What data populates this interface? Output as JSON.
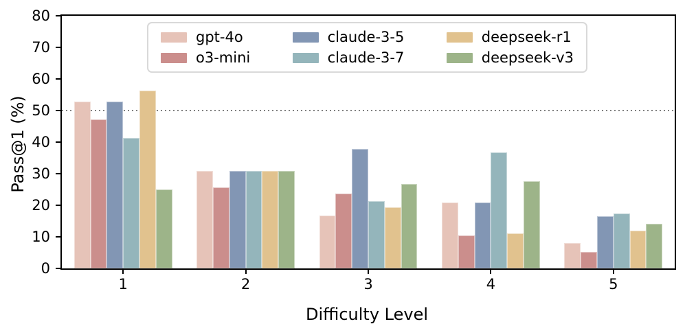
{
  "figure": {
    "background": "#ffffff"
  },
  "chart_data": {
    "type": "bar",
    "title": "",
    "xlabel": "Difficulty Level",
    "ylabel": "Pass@1 (%)",
    "categories": [
      "1",
      "2",
      "3",
      "4",
      "5"
    ],
    "series": [
      {
        "name": "gpt-4o",
        "color": "#e6c3b8",
        "values": [
          52.9,
          30.8,
          16.7,
          20.8,
          8.1
        ]
      },
      {
        "name": "o3-mini",
        "color": "#cb8e8c",
        "values": [
          47.2,
          25.7,
          23.7,
          10.4,
          5.2
        ]
      },
      {
        "name": "claude-3-5",
        "color": "#8296b4",
        "values": [
          52.9,
          30.8,
          37.9,
          20.8,
          16.5
        ]
      },
      {
        "name": "claude-3-7",
        "color": "#94b5bb",
        "values": [
          41.3,
          30.8,
          21.3,
          36.7,
          17.5
        ]
      },
      {
        "name": "deepseek-r1",
        "color": "#e1c28e",
        "values": [
          56.3,
          30.8,
          19.3,
          11.0,
          12.0
        ]
      },
      {
        "name": "deepseek-v3",
        "color": "#9db489",
        "values": [
          25.0,
          30.8,
          26.8,
          27.6,
          14.1
        ]
      }
    ],
    "ylim": [
      0,
      80
    ],
    "yticks": [
      0,
      10,
      20,
      30,
      40,
      50,
      60,
      70,
      80
    ],
    "reference_line": {
      "y": 50,
      "style": "dotted",
      "color": "#7f7f7f"
    },
    "legend": {
      "position": "upper center",
      "ncol": 3
    },
    "grid": false,
    "axis_color": "#000000",
    "group_width_fraction": 0.8
  }
}
